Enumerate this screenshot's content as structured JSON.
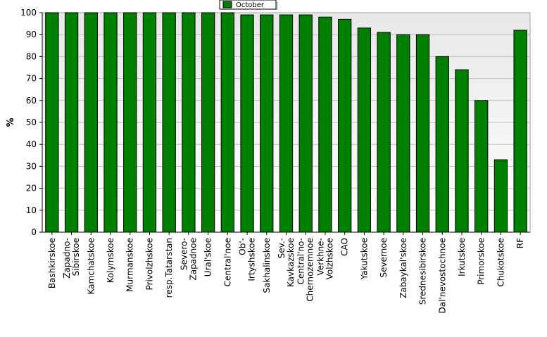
{
  "chart_data": {
    "type": "bar",
    "ylabel": "%",
    "ylim": [
      0,
      100
    ],
    "yticks": [
      0,
      10,
      20,
      30,
      40,
      50,
      60,
      70,
      80,
      90,
      100
    ],
    "grid": true,
    "legend_position": "top-center",
    "bar_color": "#008000",
    "series": [
      {
        "name": "October",
        "values": [
          100,
          100,
          100,
          100,
          100,
          100,
          100,
          100,
          100,
          100,
          99,
          99,
          99,
          99,
          98,
          97,
          93,
          91,
          90,
          90,
          80,
          74,
          60,
          33,
          92
        ]
      }
    ],
    "categories": [
      [
        "Bashkirskoe"
      ],
      [
        "Zapadno-",
        "Sibirskoe"
      ],
      [
        "Kamchatskoe"
      ],
      [
        "Kolymskoe"
      ],
      [
        "Murmanskoe"
      ],
      [
        "Privolzhskoe"
      ],
      [
        "resp.Tatarstan"
      ],
      [
        "Severo-",
        "Zapadnoe"
      ],
      [
        "Ural'skoe"
      ],
      [
        "Central'noe"
      ],
      [
        "Ob'-",
        "Irtyshskoe"
      ],
      [
        "Sakhalinskoe"
      ],
      [
        "Sev.-",
        "Kavkazskoe"
      ],
      [
        "Central'no-",
        "Chernozemnoe"
      ],
      [
        "Verkhne-",
        "Volzhskoe"
      ],
      [
        "CAO"
      ],
      [
        "Yakutskoe"
      ],
      [
        "Severnoe"
      ],
      [
        "Zabaykal'skoe"
      ],
      [
        "Srednesibirskoe"
      ],
      [
        "Dal'nevostochnoe"
      ],
      [
        "Irkutskoe"
      ],
      [
        "Primorskoe"
      ],
      [
        "Chukotskoe"
      ],
      [
        "RF"
      ]
    ]
  }
}
